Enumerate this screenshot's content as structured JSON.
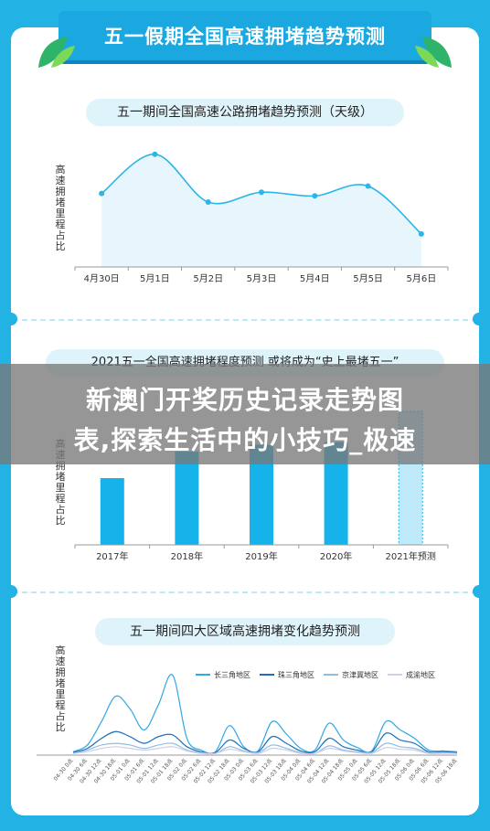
{
  "banner_title": "五一假期全国高速拥堵趋势预测",
  "overlay": {
    "line1": "新澳门开奖历史记录走势图",
    "line2": "表,探索生活中的小技巧_极速"
  },
  "chart_data": [
    {
      "type": "line",
      "title": "五一期间全国高速公路拥堵趋势预测（天级）",
      "ylabel": "高速拥堵里程占比",
      "categories": [
        "4月30日",
        "5月1日",
        "5月2日",
        "5月3日",
        "5月4日",
        "5月5日",
        "5月6日"
      ],
      "values": [
        60,
        92,
        53,
        61,
        58,
        66,
        27
      ],
      "ylim": [
        0,
        100
      ],
      "color": "#2cb5e8"
    },
    {
      "type": "bar",
      "title": "2021五一全国高速拥堵程度预测 或将成为“史上最堵五一”",
      "ylabel": "高速拥堵里程占比",
      "categories": [
        "2017年",
        "2018年",
        "2019年",
        "2020年",
        "2021年预测"
      ],
      "values": [
        50,
        70,
        75,
        77,
        100
      ],
      "ylim": [
        0,
        100
      ],
      "color": "#16b3eb",
      "predicted_index": 4
    },
    {
      "type": "line",
      "title": "五一期间四大区域高速拥堵变化趋势预测",
      "ylabel": "高速拥堵里程占比",
      "x": [
        "04-30 0点",
        "04-30 6点",
        "04-30 12点",
        "04-30 18点",
        "05-01 0点",
        "05-01 6点",
        "05-01 12点",
        "05-01 18点",
        "05-02 0点",
        "05-02 6点",
        "05-02 12点",
        "05-02 18点",
        "05-03 0点",
        "05-03 6点",
        "05-03 12点",
        "05-03 18点",
        "05-04 0点",
        "05-04 6点",
        "05-04 12点",
        "05-04 18点",
        "05-05 0点",
        "05-05 6点",
        "05-05 12点",
        "05-05 18点",
        "05-06 0点",
        "05-06 6点",
        "05-06 12点",
        "05-06 18点"
      ],
      "ylim": [
        0,
        100
      ],
      "legend_position": "top",
      "series": [
        {
          "name": "长三角地区",
          "color": "#31a8e3",
          "values": [
            4,
            12,
            40,
            70,
            55,
            30,
            60,
            95,
            20,
            6,
            4,
            35,
            10,
            5,
            40,
            25,
            8,
            6,
            38,
            18,
            9,
            5,
            40,
            30,
            20,
            6,
            5,
            4
          ]
        },
        {
          "name": "珠三角地区",
          "color": "#1f6fb8",
          "values": [
            3,
            8,
            20,
            28,
            22,
            14,
            22,
            24,
            10,
            4,
            3,
            18,
            8,
            4,
            22,
            14,
            5,
            4,
            20,
            10,
            6,
            4,
            26,
            18,
            14,
            4,
            4,
            3
          ]
        },
        {
          "name": "京津冀地区",
          "color": "#8fbde6",
          "values": [
            2,
            6,
            12,
            14,
            12,
            8,
            12,
            14,
            6,
            3,
            2,
            10,
            5,
            3,
            12,
            8,
            3,
            2,
            11,
            6,
            4,
            3,
            14,
            10,
            8,
            3,
            3,
            2
          ]
        },
        {
          "name": "成渝地区",
          "color": "#cfcfe6",
          "values": [
            2,
            4,
            8,
            10,
            8,
            6,
            8,
            10,
            5,
            2,
            2,
            7,
            4,
            2,
            8,
            6,
            2,
            2,
            8,
            5,
            3,
            2,
            9,
            7,
            6,
            2,
            2,
            2
          ]
        }
      ]
    }
  ]
}
